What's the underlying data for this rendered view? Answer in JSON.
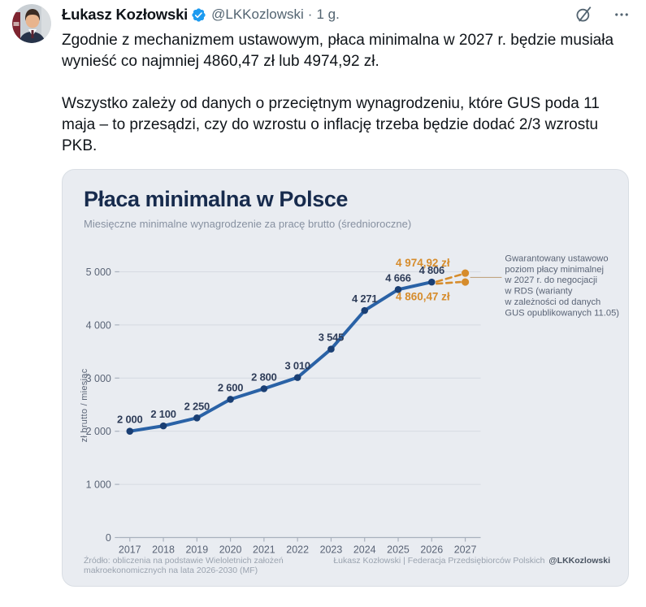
{
  "tweet": {
    "author": "Łukasz Kozłowski",
    "handle": "@LKKozlowski",
    "separator": "·",
    "timestamp": "1 g.",
    "icons": {
      "verified": "verified-badge",
      "grok": "grok-slash-circle",
      "more": "ellipsis"
    },
    "paragraphs": {
      "p1": "Zgodnie z mechanizmem ustawowym, płaca minimalna w 2027 r. będzie musiała wynieść co najmniej 4860,47 zł lub 4974,92 zł.",
      "p2": "Wszystko zależy od danych o przeciętnym wynagrodzeniu, które GUS poda 11 maja – to przesądzi, czy do wzrostu o inflację trzeba będzie dodać 2/3 wzrostu PKB."
    }
  },
  "chart_data": {
    "type": "line",
    "title": "Płaca minimalna w Polsce",
    "subtitle": "Miesięczne minimalne wynagrodzenie za pracę brutto (średnioroczne)",
    "ylabel": "zł brutto / miesiąc",
    "categories": [
      2017,
      2018,
      2019,
      2020,
      2021,
      2022,
      2023,
      2024,
      2025,
      2026
    ],
    "values": [
      2000,
      2100,
      2250,
      2600,
      2800,
      3010,
      3545,
      4271,
      4666,
      4806
    ],
    "value_labels": [
      "2 000",
      "2 100",
      "2 250",
      "2 600",
      "2 800",
      "3 010",
      "3 545",
      "4 271",
      "4 666",
      "4 806"
    ],
    "projection_year": 2027,
    "projection_variants": [
      {
        "value": 4974.92,
        "label": "4 974,92 zł"
      },
      {
        "value": 4860.47,
        "label": "4 860,47 zł"
      }
    ],
    "annotation_lines": [
      "Gwarantowany ustawowo",
      "poziom płacy minimalnej",
      "w 2027 r. do negocjacji",
      "w RDS (warianty",
      "w zależności od danych",
      "GUS opublikowanych 11.05)"
    ],
    "yticks": [
      0,
      1000,
      2000,
      3000,
      4000,
      5000
    ],
    "ytick_labels": [
      "0",
      "1 000",
      "2 000",
      "3 000",
      "4 000",
      "5 000"
    ],
    "xtick_labels": [
      "2017",
      "2018",
      "2019",
      "2020",
      "2021",
      "2022",
      "2023",
      "2024",
      "2025",
      "2026",
      "2027"
    ],
    "ylim": [
      0,
      5000
    ],
    "grid": true,
    "legend": "none",
    "colors": {
      "line": "#2A62A6",
      "point": "#1A3F74",
      "accent": "#D68C2C",
      "leader": "#C2A582",
      "grid": "#D6DAE1",
      "axis": "#A9B1BD",
      "text": "#5A6476",
      "label": "#2E3C58",
      "title": "#172B4D",
      "subtitle": "#8791A1",
      "card_bg": "#E9ECF1"
    },
    "source": "Źródło: obliczenia na podstawie Wieloletnich założeń makroekonomicznych na lata 2026-2030 (MF)",
    "credit": "Łukasz Kozłowski | Federacja Przedsiębiorców Polskich",
    "credit_handle": "@LKKozlowski"
  }
}
